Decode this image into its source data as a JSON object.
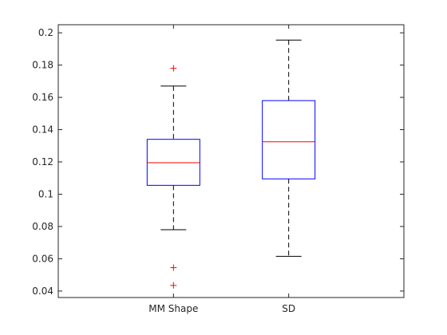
{
  "chart_data": {
    "type": "box",
    "categories": [
      "MM Shape",
      "SD"
    ],
    "ylim": [
      0.036,
      0.205
    ],
    "yticks": [
      0.04,
      0.06,
      0.08,
      0.1,
      0.12,
      0.14,
      0.16,
      0.18,
      0.2
    ],
    "ytick_labels": [
      "0.04",
      "0.06",
      "0.08",
      "0.1",
      "0.12",
      "0.14",
      "0.16",
      "0.18",
      "0.2"
    ],
    "boxes": [
      {
        "category": "MM Shape",
        "whisker_low": 0.078,
        "q1": 0.1055,
        "median": 0.1195,
        "q3": 0.134,
        "whisker_high": 0.167,
        "outliers": [
          0.178,
          0.0545,
          0.0435
        ]
      },
      {
        "category": "SD",
        "whisker_low": 0.0615,
        "q1": 0.1095,
        "median": 0.1325,
        "q3": 0.158,
        "whisker_high": 0.1955,
        "outliers": []
      }
    ],
    "colors": {
      "box": "#0000ff",
      "median": "#ff0000",
      "whisker": "#000000",
      "outlier": "#ff0000",
      "axes": "#262626"
    },
    "grid": false
  }
}
